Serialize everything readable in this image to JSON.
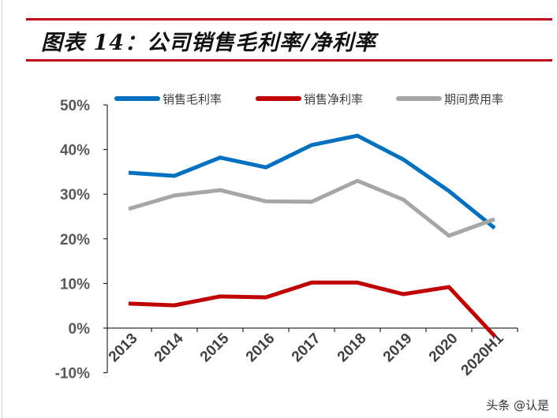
{
  "title": "图表 14：公司销售毛利率/净利率",
  "watermark": "头条 @认是",
  "chart_data": {
    "type": "line",
    "categories": [
      "2013",
      "2014",
      "2015",
      "2016",
      "2017",
      "2018",
      "2019",
      "2020",
      "2020H1"
    ],
    "ylim": [
      -10,
      50
    ],
    "yticks": [
      "-10%",
      "0%",
      "10%",
      "20%",
      "30%",
      "40%",
      "50%"
    ],
    "legend_position": "top",
    "grid": false,
    "series": [
      {
        "name": "销售毛利率",
        "color": "#0070c0",
        "values": [
          34.8,
          34.1,
          38.2,
          36.0,
          41.0,
          43.1,
          37.8,
          30.7,
          22.4
        ]
      },
      {
        "name": "销售净利率",
        "color": "#c00000",
        "values": [
          5.5,
          5.1,
          7.1,
          6.9,
          10.2,
          10.2,
          7.6,
          9.2,
          -1.8
        ]
      },
      {
        "name": "期间费用率",
        "color": "#a6a6a6",
        "values": [
          26.7,
          29.7,
          30.9,
          28.4,
          28.3,
          33.0,
          28.8,
          20.7,
          24.4
        ]
      }
    ]
  }
}
